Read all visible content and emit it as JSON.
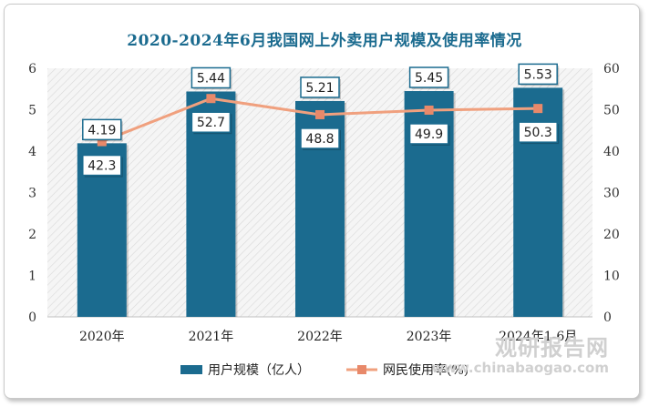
{
  "chart_data": {
    "type": "bar",
    "title": "2020-2024年6月我国网上外卖用户规模及使用率情况",
    "categories": [
      "2020年",
      "2021年",
      "2022年",
      "2023年",
      "2024年1-6月"
    ],
    "series": [
      {
        "name": "用户规模（亿人）",
        "type": "bar",
        "axis": "left",
        "values": [
          4.19,
          5.44,
          5.21,
          5.45,
          5.53
        ],
        "labels": [
          "4.19",
          "5.44",
          "5.21",
          "5.45",
          "5.53"
        ]
      },
      {
        "name": "网民使用率(%)",
        "type": "line",
        "axis": "right",
        "values": [
          42.3,
          52.7,
          48.8,
          49.9,
          50.3
        ],
        "labels": [
          "42.3",
          "52.7",
          "48.8",
          "49.9",
          "50.3"
        ]
      }
    ],
    "y_left": {
      "min": 0,
      "max": 6,
      "ticks": [
        "0",
        "1",
        "2",
        "3",
        "4",
        "5",
        "6"
      ]
    },
    "y_right": {
      "min": 0,
      "max": 60,
      "ticks": [
        "0",
        "10",
        "20",
        "30",
        "40",
        "50",
        "60"
      ]
    },
    "legend": "bottom",
    "grid": false,
    "colors": {
      "bar": "#1b6b8f",
      "line": "#f0a07e",
      "marker": "#e8896a",
      "title": "#1b6b8f"
    }
  },
  "watermark": {
    "cn": "观研报告网",
    "en": "www.chinabaogao.com"
  }
}
